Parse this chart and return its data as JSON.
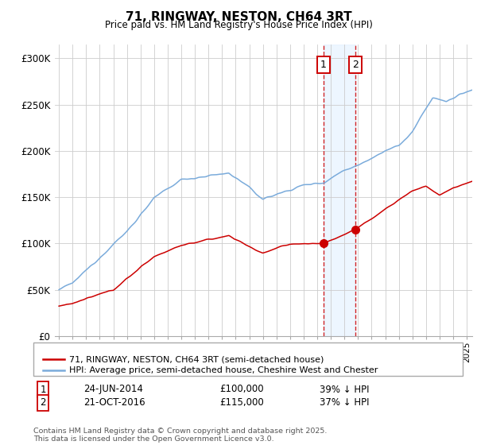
{
  "title": "71, RINGWAY, NESTON, CH64 3RT",
  "subtitle": "Price paid vs. HM Land Registry's House Price Index (HPI)",
  "ylabel_ticks": [
    "£0",
    "£50K",
    "£100K",
    "£150K",
    "£200K",
    "£250K",
    "£300K"
  ],
  "ytick_vals": [
    0,
    50000,
    100000,
    150000,
    200000,
    250000,
    300000
  ],
  "ylim": [
    0,
    315000
  ],
  "xlim_start": 1994.7,
  "xlim_end": 2025.4,
  "legend_line1": "71, RINGWAY, NESTON, CH64 3RT (semi-detached house)",
  "legend_line2": "HPI: Average price, semi-detached house, Cheshire West and Chester",
  "purchase1_date": "24-JUN-2014",
  "purchase1_price": "£100,000",
  "purchase1_hpi": "39% ↓ HPI",
  "purchase1_year": 2014.47,
  "purchase1_price_val": 100000,
  "purchase2_date": "21-OCT-2016",
  "purchase2_price": "£115,000",
  "purchase2_hpi": "37% ↓ HPI",
  "purchase2_year": 2016.8,
  "purchase2_price_val": 115000,
  "footnote": "Contains HM Land Registry data © Crown copyright and database right 2025.\nThis data is licensed under the Open Government Licence v3.0.",
  "line_color_property": "#cc0000",
  "line_color_hpi": "#7aabdb",
  "shade_color": "#ddeeff",
  "background_color": "#ffffff",
  "grid_color": "#cccccc"
}
